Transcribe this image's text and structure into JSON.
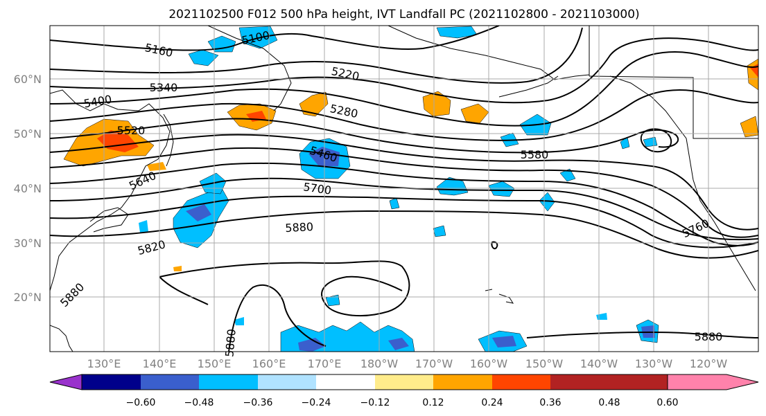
{
  "title": "2021102500 F012 500 hPa height, IVT Landfall PC (2021102800 - 2021103000)",
  "map": {
    "lon_labels": [
      "130°E",
      "140°E",
      "150°E",
      "160°E",
      "170°E",
      "180°W",
      "170°W",
      "160°W",
      "150°W",
      "140°W",
      "130°W",
      "120°W"
    ],
    "lat_labels": [
      "60°N",
      "50°N",
      "40°N",
      "30°N",
      "20°N"
    ],
    "contour_labels": [
      "5100",
      "5160",
      "5220",
      "5280",
      "5340",
      "5400",
      "5460",
      "5520",
      "5580",
      "5640",
      "5700",
      "5760",
      "5820",
      "5880",
      "5880",
      "5880",
      "5880"
    ]
  },
  "colorbar": {
    "tick_labels": [
      "−0.60",
      "−0.48",
      "−0.36",
      "−0.24",
      "−0.12",
      "0.12",
      "0.24",
      "0.36",
      "0.48",
      "0.60"
    ],
    "colors": [
      "#9932cc",
      "#00008b",
      "#3a5fcd",
      "#00bfff",
      "#b0e2ff",
      "#ffffff",
      "#ffec8b",
      "#ffa500",
      "#ff4500",
      "#b22222",
      "#ff82ab"
    ]
  },
  "colors": {
    "land_outline": "#000000",
    "grid": "#a8a8a8",
    "contour": "#000000"
  }
}
